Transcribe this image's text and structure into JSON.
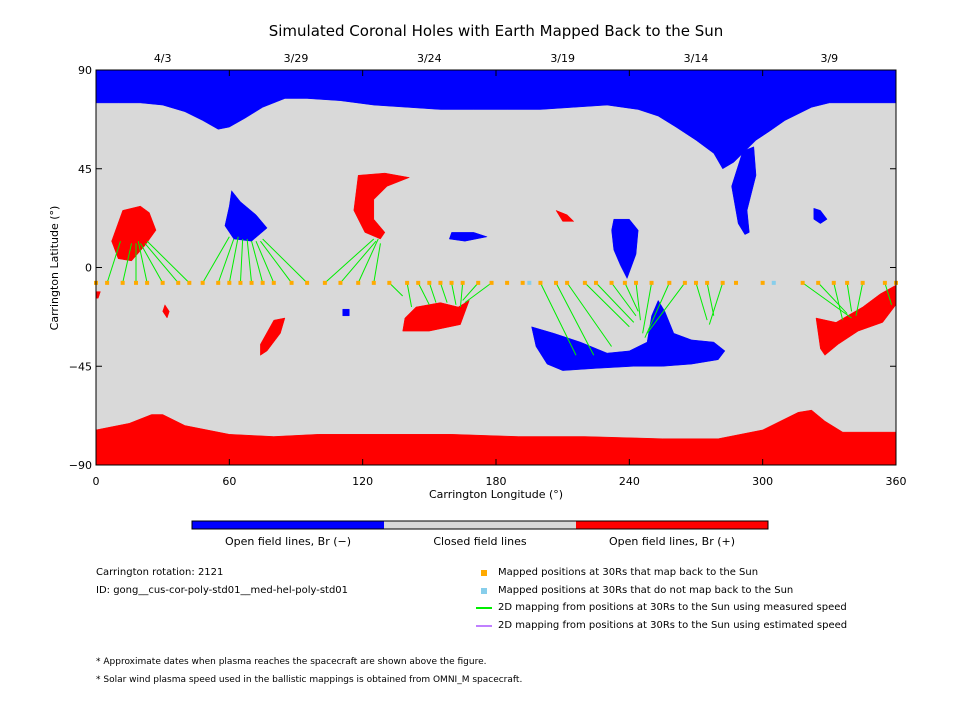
{
  "chart_data": {
    "type": "map",
    "title": "Simulated Coronal Holes with Earth Mapped Back to the Sun",
    "xlabel": "Carrington Longitude (°)",
    "ylabel": "Carrington Latitude (°)",
    "xlim": [
      0,
      360
    ],
    "ylim": [
      -90,
      90
    ],
    "xticks": [
      "0",
      "60",
      "120",
      "180",
      "240",
      "300",
      "360"
    ],
    "yticks": [
      "90",
      "45",
      "0",
      "−45",
      "−90"
    ],
    "date_ticks": [
      {
        "label": "4/3",
        "lon": 30
      },
      {
        "label": "3/29",
        "lon": 90
      },
      {
        "label": "3/24",
        "lon": 150
      },
      {
        "label": "3/19",
        "lon": 210
      },
      {
        "label": "3/14",
        "lon": 270
      },
      {
        "label": "3/9",
        "lon": 330
      }
    ],
    "colors": {
      "negative": "#0000ff",
      "closed": "#d9d9d9",
      "positive": "#ff0000",
      "mapped": "#ffaa00",
      "unmapped": "#87ceeb",
      "measured": "#00ee00",
      "estimated": "#c080ff"
    },
    "colorbar": {
      "labels": [
        "Open field lines, Br (−)",
        "Closed field lines",
        "Open field lines, Br (+)"
      ]
    },
    "regions": [
      {
        "polarity": "negative",
        "poly": [
          [
            0,
            90
          ],
          [
            360,
            90
          ],
          [
            360,
            75
          ],
          [
            330,
            75
          ],
          [
            322,
            73
          ],
          [
            310,
            67
          ],
          [
            303,
            62
          ],
          [
            297,
            58
          ],
          [
            291,
            52
          ],
          [
            287,
            48
          ],
          [
            282,
            45
          ],
          [
            278,
            52
          ],
          [
            270,
            58
          ],
          [
            261,
            64
          ],
          [
            253,
            69
          ],
          [
            244,
            72
          ],
          [
            230,
            74
          ],
          [
            215,
            73
          ],
          [
            200,
            72
          ],
          [
            185,
            72
          ],
          [
            170,
            72
          ],
          [
            155,
            72
          ],
          [
            140,
            73
          ],
          [
            125,
            74
          ],
          [
            110,
            76
          ],
          [
            95,
            77
          ],
          [
            85,
            77
          ],
          [
            75,
            73
          ],
          [
            67,
            68
          ],
          [
            60,
            64
          ],
          [
            55,
            63
          ],
          [
            48,
            67
          ],
          [
            40,
            71
          ],
          [
            30,
            74
          ],
          [
            20,
            75
          ],
          [
            10,
            75
          ],
          [
            0,
            75
          ]
        ]
      },
      {
        "polarity": "negative",
        "poly": [
          [
            291,
            53
          ],
          [
            296,
            55
          ],
          [
            297,
            42
          ],
          [
            293,
            26
          ],
          [
            294,
            16
          ],
          [
            292,
            15
          ],
          [
            289,
            20
          ],
          [
            286,
            37
          ]
        ]
      },
      {
        "polarity": "negative",
        "poly": [
          [
            323,
            27
          ],
          [
            326,
            26
          ],
          [
            329,
            22
          ],
          [
            326,
            20
          ],
          [
            323,
            22
          ]
        ]
      },
      {
        "polarity": "negative",
        "poly": [
          [
            61,
            35
          ],
          [
            65,
            30
          ],
          [
            72,
            24
          ],
          [
            77,
            18
          ],
          [
            70,
            12
          ],
          [
            62,
            13
          ],
          [
            58,
            19
          ],
          [
            60,
            28
          ]
        ]
      },
      {
        "polarity": "negative",
        "poly": [
          [
            160,
            16
          ],
          [
            170,
            16
          ],
          [
            176,
            14
          ],
          [
            166,
            12
          ],
          [
            159,
            13
          ]
        ]
      },
      {
        "polarity": "negative",
        "poly": [
          [
            233,
            22
          ],
          [
            240,
            22
          ],
          [
            244,
            17
          ],
          [
            243,
            6
          ],
          [
            239,
            -5
          ],
          [
            236,
            1
          ],
          [
            233,
            8
          ],
          [
            232,
            17
          ]
        ]
      },
      {
        "polarity": "negative",
        "poly": [
          [
            196,
            -27
          ],
          [
            206,
            -30
          ],
          [
            218,
            -34
          ],
          [
            230,
            -39
          ],
          [
            240,
            -38
          ],
          [
            248,
            -34
          ],
          [
            250,
            -22
          ],
          [
            253,
            -15
          ],
          [
            256,
            -20
          ],
          [
            260,
            -30
          ],
          [
            268,
            -33
          ],
          [
            278,
            -34
          ],
          [
            283,
            -38
          ],
          [
            280,
            -42
          ],
          [
            268,
            -44
          ],
          [
            255,
            -45
          ],
          [
            242,
            -45
          ],
          [
            225,
            -46
          ],
          [
            210,
            -47
          ],
          [
            203,
            -44
          ],
          [
            198,
            -36
          ]
        ]
      },
      {
        "polarity": "negative",
        "poly": [
          [
            111,
            -19
          ],
          [
            114,
            -19
          ],
          [
            114,
            -22
          ],
          [
            111,
            -22
          ]
        ]
      },
      {
        "polarity": "positive",
        "poly": [
          [
            0,
            -90
          ],
          [
            360,
            -90
          ],
          [
            360,
            -75
          ],
          [
            336,
            -75
          ],
          [
            328,
            -70
          ],
          [
            322,
            -65
          ],
          [
            316,
            -66
          ],
          [
            300,
            -74
          ],
          [
            280,
            -78
          ],
          [
            255,
            -78
          ],
          [
            220,
            -77
          ],
          [
            190,
            -77
          ],
          [
            160,
            -76
          ],
          [
            130,
            -76
          ],
          [
            100,
            -76
          ],
          [
            80,
            -77
          ],
          [
            60,
            -76
          ],
          [
            40,
            -72
          ],
          [
            30,
            -67
          ],
          [
            25,
            -67
          ],
          [
            15,
            -71
          ],
          [
            0,
            -74
          ]
        ]
      },
      {
        "polarity": "positive",
        "poly": [
          [
            7,
            12
          ],
          [
            12,
            26
          ],
          [
            20,
            28
          ],
          [
            24,
            25
          ],
          [
            27,
            17
          ],
          [
            22,
            10
          ],
          [
            16,
            3
          ],
          [
            10,
            4
          ]
        ]
      },
      {
        "polarity": "positive",
        "poly": [
          [
            118,
            42
          ],
          [
            130,
            43
          ],
          [
            141,
            41
          ],
          [
            131,
            37
          ],
          [
            125,
            31
          ],
          [
            125,
            22
          ],
          [
            130,
            16
          ],
          [
            128,
            13
          ],
          [
            121,
            16
          ],
          [
            116,
            26
          ],
          [
            117,
            34
          ]
        ]
      },
      {
        "polarity": "positive",
        "poly": [
          [
            207,
            26
          ],
          [
            212,
            24
          ],
          [
            215,
            21
          ],
          [
            210,
            21
          ]
        ]
      },
      {
        "polarity": "positive",
        "poly": [
          [
            139,
            -23
          ],
          [
            144,
            -18
          ],
          [
            155,
            -16
          ],
          [
            163,
            -18
          ],
          [
            168,
            -15
          ],
          [
            164,
            -26
          ],
          [
            150,
            -29
          ],
          [
            138,
            -29
          ]
        ]
      },
      {
        "polarity": "positive",
        "poly": [
          [
            74,
            -35
          ],
          [
            80,
            -24
          ],
          [
            85,
            -23
          ],
          [
            83,
            -30
          ],
          [
            77,
            -38
          ],
          [
            74,
            -40
          ]
        ]
      },
      {
        "polarity": "positive",
        "poly": [
          [
            31,
            -17
          ],
          [
            33,
            -20
          ],
          [
            32,
            -23
          ],
          [
            30,
            -20
          ]
        ]
      },
      {
        "polarity": "positive",
        "poly": [
          [
            324,
            -23
          ],
          [
            333,
            -25
          ],
          [
            345,
            -18
          ],
          [
            353,
            -12
          ],
          [
            360,
            -8
          ],
          [
            360,
            -17
          ],
          [
            354,
            -25
          ],
          [
            343,
            -29
          ],
          [
            334,
            -35
          ],
          [
            328,
            -40
          ],
          [
            326,
            -37
          ]
        ]
      },
      {
        "polarity": "positive",
        "poly": [
          [
            0,
            -11
          ],
          [
            2,
            -11
          ],
          [
            1,
            -14
          ],
          [
            0,
            -14
          ]
        ]
      }
    ],
    "mapped_points": {
      "lat": -7,
      "lon": [
        0,
        5,
        12,
        18,
        23,
        30,
        37,
        42,
        48,
        55,
        60,
        65,
        70,
        75,
        80,
        88,
        95,
        103,
        110,
        118,
        125,
        132,
        140,
        145,
        150,
        155,
        160,
        165,
        172,
        178,
        185,
        192,
        200,
        207,
        212,
        220,
        225,
        232,
        238,
        243,
        250,
        258,
        265,
        270,
        275,
        282,
        288,
        300,
        318,
        325,
        332,
        338,
        345,
        355,
        360
      ]
    },
    "unmapped_points": {
      "lat": -7,
      "lon": [
        195,
        305
      ]
    },
    "mappings": [
      [
        5,
        -7,
        11,
        12
      ],
      [
        12,
        -7,
        16,
        11
      ],
      [
        18,
        -7,
        18,
        11
      ],
      [
        23,
        -7,
        19,
        12
      ],
      [
        30,
        -7,
        20,
        11
      ],
      [
        37,
        -7,
        22,
        11
      ],
      [
        42,
        -7,
        23,
        12
      ],
      [
        48,
        -7,
        60,
        14
      ],
      [
        55,
        -7,
        62,
        13
      ],
      [
        60,
        -7,
        64,
        14
      ],
      [
        65,
        -7,
        66,
        13
      ],
      [
        70,
        -7,
        68,
        13
      ],
      [
        75,
        -7,
        70,
        12
      ],
      [
        80,
        -7,
        72,
        12
      ],
      [
        88,
        -7,
        74,
        12
      ],
      [
        95,
        -7,
        75,
        13
      ],
      [
        103,
        -7,
        125,
        13
      ],
      [
        110,
        -7,
        126,
        12
      ],
      [
        118,
        -7,
        127,
        13
      ],
      [
        125,
        -7,
        128,
        11
      ],
      [
        132,
        -7,
        138,
        -13
      ],
      [
        140,
        -7,
        142,
        -18
      ],
      [
        145,
        -7,
        150,
        -17
      ],
      [
        150,
        -7,
        153,
        -16
      ],
      [
        155,
        -7,
        158,
        -16
      ],
      [
        160,
        -7,
        162,
        -17
      ],
      [
        165,
        -7,
        164,
        -18
      ],
      [
        172,
        -7,
        165,
        -15
      ],
      [
        178,
        -7,
        166,
        -16
      ],
      [
        200,
        -7,
        216,
        -40
      ],
      [
        207,
        -7,
        224,
        -40
      ],
      [
        212,
        -7,
        232,
        -36
      ],
      [
        220,
        -7,
        240,
        -27
      ],
      [
        225,
        -7,
        242,
        -25
      ],
      [
        232,
        -7,
        243,
        -22
      ],
      [
        238,
        -7,
        244,
        -20
      ],
      [
        243,
        -7,
        245,
        -24
      ],
      [
        250,
        -7,
        246,
        -30
      ],
      [
        258,
        -7,
        247,
        -32
      ],
      [
        265,
        -7,
        248,
        -30
      ],
      [
        270,
        -7,
        275,
        -24
      ],
      [
        275,
        -7,
        278,
        -22
      ],
      [
        282,
        -7,
        276,
        -26
      ],
      [
        318,
        -7,
        340,
        -23
      ],
      [
        325,
        -7,
        338,
        -21
      ],
      [
        332,
        -7,
        336,
        -24
      ],
      [
        338,
        -7,
        340,
        -20
      ],
      [
        345,
        -7,
        342,
        -22
      ],
      [
        355,
        -7,
        358,
        -17
      ],
      [
        360,
        -7,
        360,
        -16
      ]
    ]
  },
  "info": {
    "rotation": "Carrington rotation: 2121",
    "id": "ID: gong__cus-cor-poly-std01__med-hel-poly-std01"
  },
  "legend": [
    {
      "label": "Mapped positions at 30Rs that map back to the Sun",
      "icon": "square"
    },
    {
      "label": "Mapped positions at 30Rs that do not map back to the Sun",
      "icon": "square"
    },
    {
      "label": "2D mapping from positions at 30Rs to the Sun using measured speed",
      "icon": "line"
    },
    {
      "label": "2D mapping from positions at 30Rs to the Sun using estimated speed",
      "icon": "line"
    }
  ],
  "notes": [
    "* Approximate dates when plasma reaches the spacecraft are shown above the figure.",
    "* Solar wind plasma speed used in the ballistic mappings is obtained from OMNI_M spacecraft."
  ]
}
